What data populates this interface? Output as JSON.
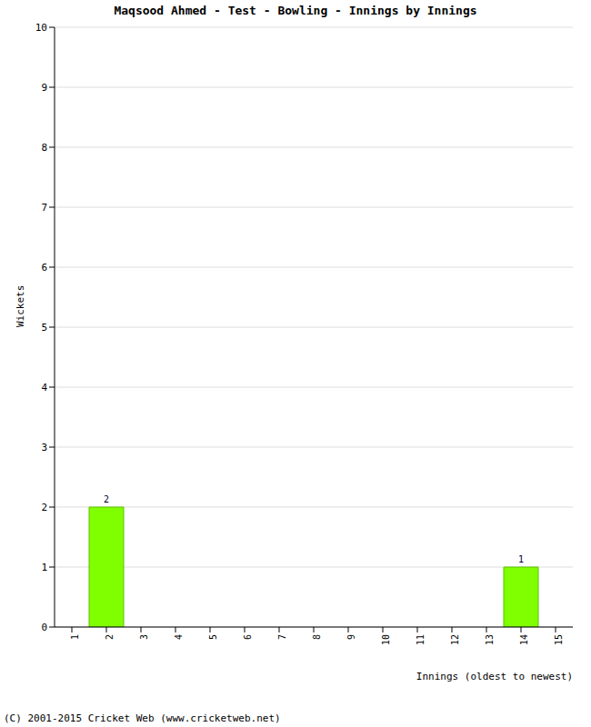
{
  "chart_data": {
    "type": "bar",
    "title": "Maqsood Ahmed - Test - Bowling - Innings by Innings",
    "x_label": "Innings (oldest to newest)",
    "y_label": "Wickets",
    "footer": "(C) 2001-2015 Cricket Web (www.cricketweb.net)",
    "categories": [
      "1",
      "2",
      "3",
      "4",
      "5",
      "6",
      "7",
      "8",
      "9",
      "10",
      "11",
      "12",
      "13",
      "14",
      "15"
    ],
    "values": [
      0,
      2,
      0,
      0,
      0,
      0,
      0,
      0,
      0,
      0,
      0,
      0,
      0,
      1,
      0
    ],
    "color": "#80ff00",
    "ylim": [
      0,
      10
    ],
    "yticks": [
      0,
      1,
      2,
      3,
      4,
      5,
      6,
      7,
      8,
      9,
      10
    ],
    "grid": true,
    "data_labels": true
  }
}
